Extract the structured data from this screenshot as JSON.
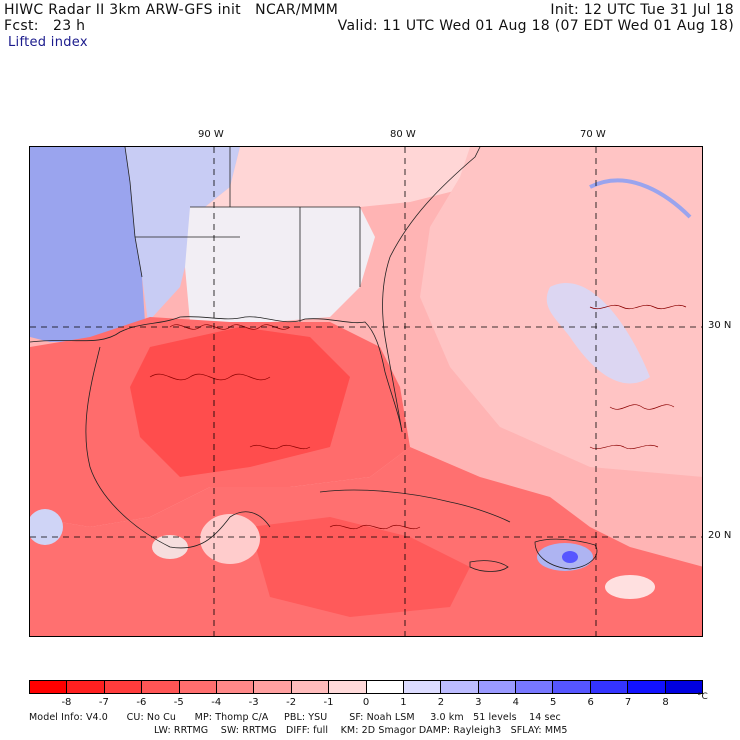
{
  "header": {
    "model_line": "HIWC Radar II 3km ARW-GFS init   NCAR/MMM",
    "init_line": "Init: 12 UTC Tue 31 Jul 18",
    "fcst_line": "Fcst:   23 h",
    "valid_line": "Valid: 11 UTC Wed 01 Aug 18 (07 EDT Wed 01 Aug 18)",
    "field_name": "Lifted index"
  },
  "map": {
    "lon_labels": [
      "90 W",
      "80 W",
      "70 W"
    ],
    "lat_labels": [
      "30 N",
      "20 N"
    ]
  },
  "colorbar": {
    "unit": "°C",
    "tick_labels": [
      "-8",
      "-7",
      "-6",
      "-5",
      "-4",
      "-3",
      "-2",
      "-1",
      "0",
      "1",
      "2",
      "3",
      "4",
      "5",
      "6",
      "7",
      "8"
    ],
    "colors": [
      "#ff0000",
      "#ff2020",
      "#ff3c3c",
      "#ff5555",
      "#ff6e6e",
      "#ff8888",
      "#ffa0a0",
      "#ffbcbc",
      "#ffdada",
      "#ffffff",
      "#dcdcff",
      "#bcbcff",
      "#9a9aff",
      "#7878ff",
      "#5656ff",
      "#3434ff",
      "#1212ff",
      "#0000e0"
    ]
  },
  "footer": {
    "line1": "Model Info: V4.0      CU: No Cu      MP: Thomp C/A     PBL: YSU       SF: Noah LSM     3.0 km   51 levels    14 sec",
    "line2": "LW: RRTMG    SW: RRTMG   DIFF: full    KM: 2D Smagor DAMP: Rayleigh3   SFLAY: MM5"
  }
}
